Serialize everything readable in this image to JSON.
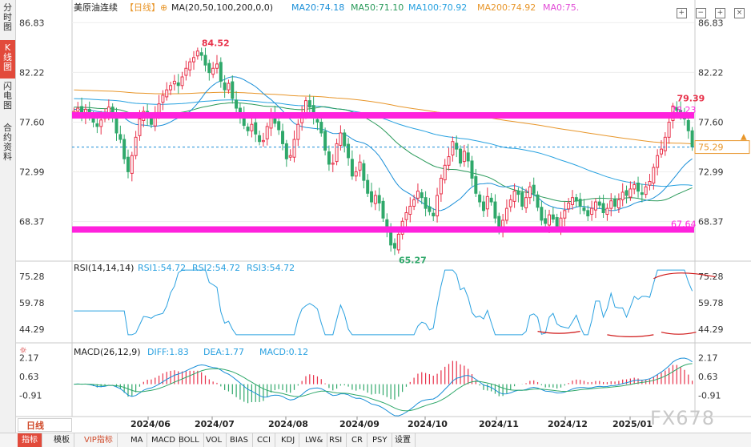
{
  "left_tabs": [
    {
      "label": "分\n时\n图",
      "active": false
    },
    {
      "label": "K\n线\n图",
      "active": true
    },
    {
      "label": "闪\n电\n图",
      "active": false
    },
    {
      "label": "合\n约\n资\n料",
      "active": false
    }
  ],
  "header": {
    "symbol": "美原油连续",
    "period_tag": "【日线】",
    "ma_label": "MA(20,50,100,200,0,0)",
    "ma_items": [
      {
        "label": "MA20:74.18",
        "color": "#1a8fd8"
      },
      {
        "label": "MA50:71.10",
        "color": "#2a9a5a"
      },
      {
        "label": "MA100:70.92",
        "color": "#26a1e0"
      },
      {
        "label": "MA200:74.92",
        "color": "#e8962a"
      },
      {
        "label": "MA0:75.",
        "color": "#e14ad6"
      }
    ]
  },
  "price_axis": {
    "ticks": [
      "86.83",
      "82.22",
      "77.60",
      "72.99",
      "68.37"
    ]
  },
  "annotations": {
    "high": "84.52",
    "low": "65.27",
    "recent_high": "79.39",
    "resistance": "78.23",
    "support": "67.64",
    "last_price": "75.29"
  },
  "rsi": {
    "label": "RSI(14,14,14)",
    "items": [
      "RSI1:54.72",
      "RSI2:54.72",
      "RSI3:54.72"
    ],
    "ticks": [
      "75.28",
      "59.78",
      "44.29"
    ]
  },
  "macd": {
    "label": "MACD(26,12,9)",
    "items": [
      "DIFF:1.83",
      "DEA:1.77",
      "MACD:0.12"
    ],
    "ticks": [
      "2.17",
      "0.63",
      "-0.91"
    ]
  },
  "x_axis": {
    "ticks": [
      "2024/06",
      "2024/07",
      "2024/08",
      "2024/09",
      "2024/10",
      "2024/11",
      "2024/12",
      "2025/01"
    ]
  },
  "period_button": "日线",
  "toolbar": [
    "指标",
    "模板",
    "VIP指标",
    "MA",
    "MACD",
    "BOLL",
    "VOL",
    "BIAS",
    "CCI",
    "KDJ",
    "LW&",
    "RSI",
    "CR",
    "PSY",
    "设置"
  ],
  "watermark": "FX678",
  "colors": {
    "up": "#e8314a",
    "down": "#2fa86a",
    "ma20": "#1a8fd8",
    "ma50": "#2a9a5a",
    "ma100": "#26a1e0",
    "ma200": "#e8962a",
    "band": "#ff22dd",
    "rsi": "#2aa1e0"
  },
  "chart_data": {
    "type": "candlestick",
    "title": "美原油连续",
    "close": [
      78.6,
      78.9,
      78.3,
      78.8,
      78.1,
      77.6,
      77.2,
      77.8,
      78.4,
      79.0,
      78.2,
      76.6,
      76.0,
      74.2,
      73.0,
      74.5,
      76.2,
      77.9,
      78.6,
      78.0,
      77.4,
      78.5,
      79.3,
      80.1,
      80.6,
      81.0,
      81.4,
      81.0,
      81.8,
      82.6,
      83.2,
      83.6,
      84.2,
      83.8,
      82.9,
      82.2,
      82.6,
      83.0,
      81.4,
      80.6,
      81.2,
      79.8,
      78.9,
      78.2,
      77.3,
      76.8,
      77.4,
      76.5,
      75.8,
      75.9,
      77.2,
      78.3,
      77.5,
      76.9,
      75.6,
      74.2,
      74.5,
      76.0,
      77.4,
      78.4,
      79.6,
      79.0,
      78.0,
      77.6,
      76.6,
      75.0,
      73.7,
      73.8,
      75.6,
      76.6,
      75.4,
      74.3,
      72.6,
      73.0,
      73.9,
      72.2,
      71.0,
      70.2,
      70.8,
      70.1,
      68.7,
      67.4,
      66.2,
      65.9,
      67.2,
      68.4,
      69.2,
      69.8,
      70.4,
      71.2,
      70.6,
      69.6,
      69.3,
      68.9,
      70.8,
      72.4,
      73.6,
      74.4,
      75.8,
      75.1,
      73.8,
      74.9,
      74.0,
      72.4,
      71.0,
      70.2,
      69.4,
      70.7,
      70.2,
      68.7,
      67.8,
      68.5,
      69.6,
      70.4,
      71.2,
      70.9,
      69.8,
      70.6,
      71.6,
      71.0,
      69.7,
      68.5,
      68.2,
      69.0,
      68.6,
      67.9,
      68.7,
      69.4,
      70.1,
      70.6,
      70.3,
      69.8,
      69.4,
      68.9,
      69.6,
      70.2,
      69.9,
      69.2,
      69.6,
      70.3,
      69.8,
      70.4,
      71.1,
      70.8,
      71.4,
      71.8,
      71.2,
      70.9,
      71.6,
      72.1,
      73.4,
      74.5,
      75.1,
      76.2,
      77.6,
      79.1,
      78.7,
      78.3,
      77.9,
      76.8,
      75.3
    ],
    "labelled_points": {
      "high": 84.52,
      "low": 65.27,
      "recent_high": 79.39,
      "last": 75.29
    },
    "horizontal_lines": [
      78.23,
      67.64
    ],
    "ma20_last": 74.18,
    "ma50_last": 71.1,
    "ma100_last": 70.92,
    "ma200_last": 74.92,
    "y_range": [
      65.0,
      87.6
    ],
    "x_ticks": [
      "2024/06",
      "2024/07",
      "2024/08",
      "2024/09",
      "2024/10",
      "2024/11",
      "2024/12",
      "2025/01"
    ],
    "rsi_range": [
      40,
      80
    ],
    "macd_range": [
      -2.0,
      2.6
    ],
    "last_values": {
      "rsi": 54.72,
      "diff": 1.83,
      "dea": 1.77,
      "macd": 0.12
    }
  }
}
